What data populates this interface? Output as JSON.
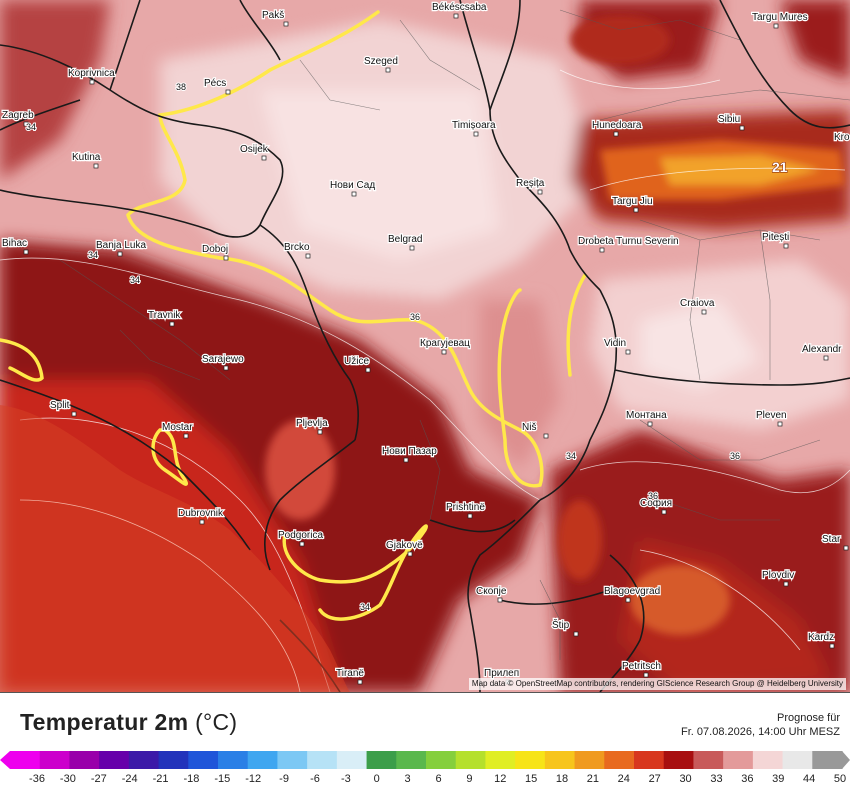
{
  "map": {
    "cities": [
      {
        "name": "Pakš"
      },
      {
        "name": "Békéscsaba"
      },
      {
        "name": "Targu Mures"
      },
      {
        "name": "Koprivnica"
      },
      {
        "name": "Pécs"
      },
      {
        "name": "Szeged"
      },
      {
        "name": "Zagreb"
      },
      {
        "name": "Timișoara"
      },
      {
        "name": "Hunedoara"
      },
      {
        "name": "Sibiu"
      },
      {
        "name": "Kro"
      },
      {
        "name": "Kutina"
      },
      {
        "name": "Osijek"
      },
      {
        "name": "Нови Сад"
      },
      {
        "name": "Reșița"
      },
      {
        "name": "Targu Jiu"
      },
      {
        "name": "Bihac"
      },
      {
        "name": "Banja Luka"
      },
      {
        "name": "Doboj"
      },
      {
        "name": "Brcko"
      },
      {
        "name": "Belgrad"
      },
      {
        "name": "Drobeta Turnu Severin"
      },
      {
        "name": "Pitești"
      },
      {
        "name": "Travnik"
      },
      {
        "name": "Крагујевац"
      },
      {
        "name": "Craiova"
      },
      {
        "name": "Sarajewo"
      },
      {
        "name": "Užice"
      },
      {
        "name": "Vidin"
      },
      {
        "name": "Alexandr"
      },
      {
        "name": "Split"
      },
      {
        "name": "Mostar"
      },
      {
        "name": "Pljevlja"
      },
      {
        "name": "Монтана"
      },
      {
        "name": "Pleven"
      },
      {
        "name": "Niš"
      },
      {
        "name": "Нови Пазар"
      },
      {
        "name": "Dubrovnik"
      },
      {
        "name": "Prishtinë"
      },
      {
        "name": "София"
      },
      {
        "name": "Star"
      },
      {
        "name": "Podgorica"
      },
      {
        "name": "Gjakovë"
      },
      {
        "name": "Plovdiv"
      },
      {
        "name": "Скопје"
      },
      {
        "name": "Blagoevgrad"
      },
      {
        "name": "Štip"
      },
      {
        "name": "Kardz"
      },
      {
        "name": "Petritsch"
      },
      {
        "name": "Прилеп"
      },
      {
        "name": "Tiranë"
      }
    ],
    "isotherm_labels": [
      "38",
      "34",
      "34",
      "34",
      "36",
      "34",
      "36",
      "36",
      "34"
    ],
    "hot_label": "21",
    "attribution": "Map data © OpenStreetMap contributors, rendering GIScience Research Group @ Heidelberg University"
  },
  "legend": {
    "title": "Temperatur 2m",
    "unit": "(°C)",
    "forecast_label": "Prognose für",
    "forecast_date": "Fr. 07.08.2026, 14:00 Uhr MESZ",
    "ticks": [
      "-36",
      "-30",
      "-27",
      "-24",
      "-21",
      "-18",
      "-15",
      "-12",
      "-9",
      "-6",
      "-3",
      "0",
      "3",
      "6",
      "9",
      "12",
      "15",
      "18",
      "21",
      "24",
      "27",
      "30",
      "33",
      "36",
      "39",
      "44",
      "50"
    ],
    "colors": [
      "#ee00ee",
      "#cc00cc",
      "#9900aa",
      "#6600aa",
      "#3c1aa8",
      "#2233bb",
      "#1f55d9",
      "#2a7fe6",
      "#3fa6f0",
      "#7cc8f4",
      "#b6e2f6",
      "#d9eef7",
      "#3c9e4a",
      "#5ab84d",
      "#85cf3c",
      "#b5e02c",
      "#e0ee24",
      "#f7e418",
      "#f7c51c",
      "#f09a1f",
      "#e86a1f",
      "#d8371e",
      "#a80f10",
      "#c85a5a",
      "#e39a9a",
      "#f4d6d6",
      "#e8e8e8",
      "#999999"
    ]
  }
}
